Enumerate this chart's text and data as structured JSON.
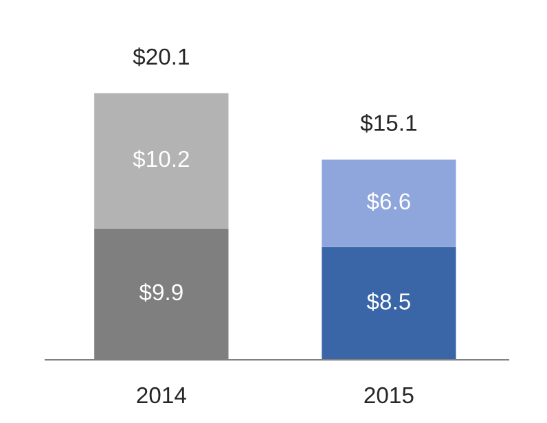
{
  "chart_data": {
    "type": "bar",
    "stacked": true,
    "categories": [
      "2014",
      "2015"
    ],
    "series": [
      {
        "colors": [
          "#7f7f7f",
          "#3a66a8"
        ],
        "values": [
          9.9,
          8.5
        ],
        "value_labels": [
          "$9.9",
          "$8.5"
        ]
      },
      {
        "colors": [
          "#b3b3b3",
          "#8ea6dc"
        ],
        "values": [
          10.2,
          6.6
        ],
        "value_labels": [
          "$10.2",
          "$6.6"
        ]
      }
    ],
    "totals": [
      "$20.1",
      "$15.1"
    ],
    "legend": false,
    "grid": false
  }
}
